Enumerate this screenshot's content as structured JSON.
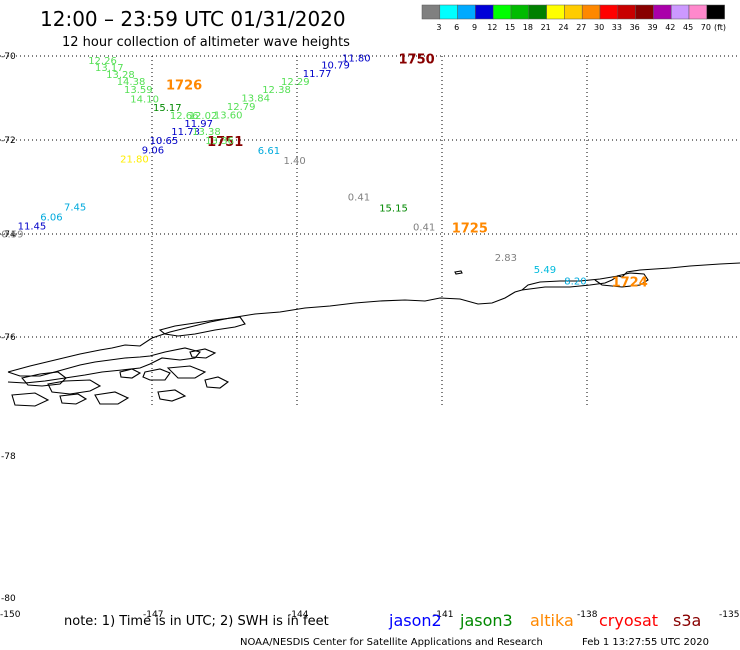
{
  "header": {
    "title": "12:00 – 23:59 UTC 01/31/2020",
    "subtitle": "12 hour collection of altimeter wave heights"
  },
  "legend": {
    "unit_label": "(ft)",
    "bins": [
      {
        "label": "3",
        "color": "#808080"
      },
      {
        "label": "6",
        "color": "#00ffff"
      },
      {
        "label": "9",
        "color": "#00aaff"
      },
      {
        "label": "12",
        "color": "#0000d8"
      },
      {
        "label": "15",
        "color": "#00ff00"
      },
      {
        "label": "18",
        "color": "#00bb00"
      },
      {
        "label": "21",
        "color": "#008000"
      },
      {
        "label": "24",
        "color": "#ffff00"
      },
      {
        "label": "27",
        "color": "#ffcc00"
      },
      {
        "label": "30",
        "color": "#ff8800"
      },
      {
        "label": "33",
        "color": "#ff0000"
      },
      {
        "label": "36",
        "color": "#c80000"
      },
      {
        "label": "39",
        "color": "#880000"
      },
      {
        "label": "42",
        "color": "#aa00aa"
      },
      {
        "label": "45",
        "color": "#cc99ff"
      },
      {
        "label": "70",
        "color": "#ff88cc"
      },
      {
        "label": "",
        "color": "#000000"
      }
    ]
  },
  "map": {
    "lat_labels": [
      "-70",
      "-72",
      "-74",
      "-76",
      "-78",
      "-80"
    ],
    "lon_labels": [
      "-150",
      "-147",
      "-144",
      "-141",
      "-138",
      "-135"
    ]
  },
  "observations": [
    {
      "text": "12.26",
      "lon": -148.32,
      "lat": -70.09,
      "color": "#55e055"
    },
    {
      "text": "13.17",
      "lon": -148.18,
      "lat": -70.26,
      "color": "#55e055"
    },
    {
      "text": "13.28",
      "lon": -147.95,
      "lat": -70.43,
      "color": "#55e055"
    },
    {
      "text": "14.38",
      "lon": -147.73,
      "lat": -70.6,
      "color": "#55e055"
    },
    {
      "text": "13.59",
      "lon": -147.58,
      "lat": -70.79,
      "color": "#55e055"
    },
    {
      "text": "14.10",
      "lon": -147.45,
      "lat": -71.01,
      "color": "#55e055"
    },
    {
      "text": "15.17",
      "lon": -146.98,
      "lat": -71.21,
      "color": "#008800"
    },
    {
      "text": "12.66",
      "lon": -146.63,
      "lat": -71.4,
      "color": "#55e055"
    },
    {
      "text": "12.02",
      "lon": -146.24,
      "lat": -71.4,
      "color": "#55e055"
    },
    {
      "text": "11.97",
      "lon": -146.33,
      "lat": -71.59,
      "color": "#0000c8"
    },
    {
      "text": "11.73",
      "lon": -146.6,
      "lat": -71.79,
      "color": "#0000c8"
    },
    {
      "text": "13.38",
      "lon": -146.17,
      "lat": -71.79,
      "color": "#55e055"
    },
    {
      "text": "10.65",
      "lon": -147.05,
      "lat": -72.0,
      "color": "#0000c8"
    },
    {
      "text": "1751",
      "lon": -145.86,
      "lat": -72.0,
      "color": "#880000",
      "big": true
    },
    {
      "text": "13.36",
      "lon": -145.9,
      "lat": -72.0,
      "color": "#55e055"
    },
    {
      "text": "9.06",
      "lon": -147.21,
      "lat": -72.2,
      "color": "#0000c8"
    },
    {
      "text": "6.61",
      "lon": -144.81,
      "lat": -72.21,
      "color": "#00aadd"
    },
    {
      "text": "21.80",
      "lon": -147.66,
      "lat": -72.39,
      "color": "#ffee00"
    },
    {
      "text": "1.40",
      "lon": -144.28,
      "lat": -72.43,
      "color": "#808080"
    },
    {
      "text": "13.60",
      "lon": -145.72,
      "lat": -71.39,
      "color": "#55e055"
    },
    {
      "text": "12.79",
      "lon": -145.45,
      "lat": -71.19,
      "color": "#55e055"
    },
    {
      "text": "13.84",
      "lon": -145.15,
      "lat": -70.99,
      "color": "#55e055"
    },
    {
      "text": "12.38",
      "lon": -144.72,
      "lat": -70.79,
      "color": "#55e055"
    },
    {
      "text": "12.29",
      "lon": -144.33,
      "lat": -70.6,
      "color": "#55e055"
    },
    {
      "text": "11.77",
      "lon": -143.88,
      "lat": -70.41,
      "color": "#0000c8"
    },
    {
      "text": "10.79",
      "lon": -143.5,
      "lat": -70.2,
      "color": "#0000c8"
    },
    {
      "text": "11.80",
      "lon": -143.07,
      "lat": -70.03,
      "color": "#0000c8"
    },
    {
      "text": "1750",
      "lon": -141.9,
      "lat": -70.03,
      "color": "#880000",
      "big": true
    },
    {
      "text": "1726",
      "lon": -146.71,
      "lat": -70.65,
      "color": "#ff8800",
      "big": true
    },
    {
      "text": "0.41",
      "lon": -142.95,
      "lat": -73.2,
      "color": "#808080"
    },
    {
      "text": "15.15",
      "lon": -142.3,
      "lat": -73.44,
      "color": "#008800"
    },
    {
      "text": "0.41",
      "lon": -141.6,
      "lat": -73.84,
      "color": "#808080"
    },
    {
      "text": "1725",
      "lon": -140.8,
      "lat": -73.84,
      "color": "#ff8800",
      "big": true
    },
    {
      "text": "2.83",
      "lon": -139.91,
      "lat": -74.45,
      "color": "#808080"
    },
    {
      "text": "5.49",
      "lon": -139.1,
      "lat": -74.68,
      "color": "#00bbdd"
    },
    {
      "text": "8.20",
      "lon": -138.47,
      "lat": -74.9,
      "color": "#00aadd"
    },
    {
      "text": "1724",
      "lon": -137.49,
      "lat": -74.9,
      "color": "#ff8800",
      "big": true
    },
    {
      "text": "7.45",
      "lon": -148.82,
      "lat": -73.42,
      "color": "#00aadd"
    },
    {
      "text": "6.06",
      "lon": -149.31,
      "lat": -73.63,
      "color": "#00aadd"
    },
    {
      "text": "11.45",
      "lon": -149.78,
      "lat": -73.82,
      "color": "#0000c8"
    },
    {
      "text": "0.59",
      "lon": -150.12,
      "lat": -73.99,
      "color": "#808080"
    }
  ],
  "footer": {
    "note": "note: 1) Time is in UTC; 2) SWH is in feet",
    "satellites": [
      {
        "name": "jason2",
        "color": "#0000ff"
      },
      {
        "name": "jason3",
        "color": "#008800"
      },
      {
        "name": "altika",
        "color": "#ff8800"
      },
      {
        "name": "cryosat",
        "color": "#ff0000"
      },
      {
        "name": "s3a",
        "color": "#880000"
      }
    ],
    "credit": "NOAA/NESDIS Center for Satellite Applications and Research",
    "timestamp": "Feb  1 13:27:55 UTC 2020"
  }
}
